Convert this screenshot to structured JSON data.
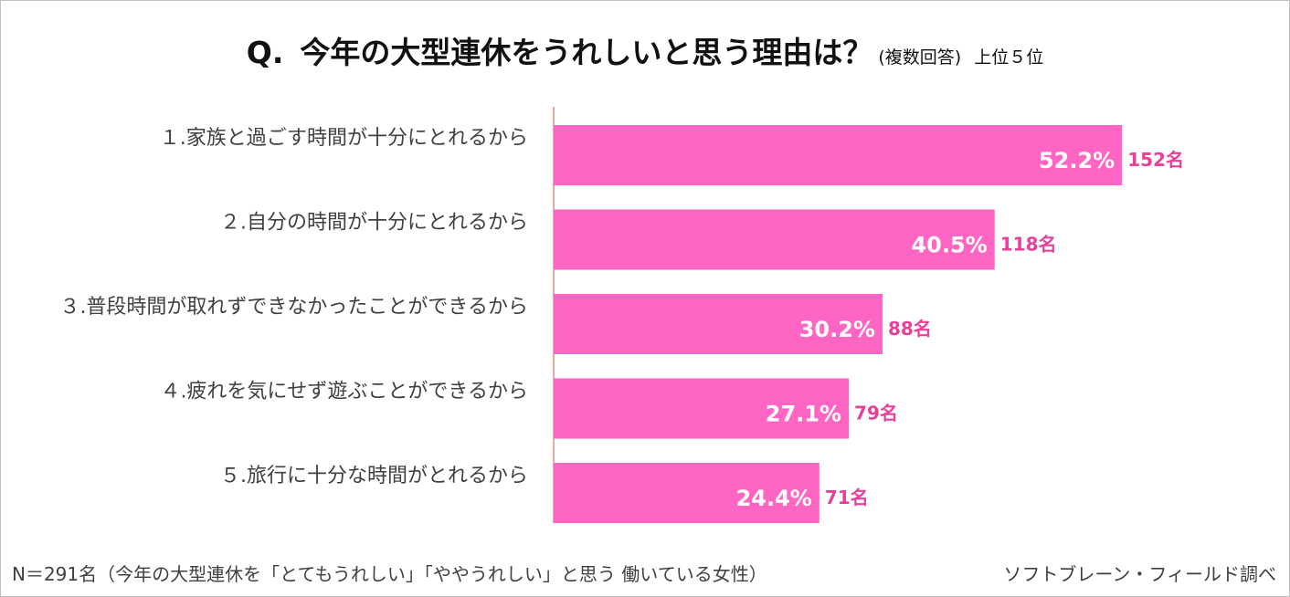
{
  "header": {
    "q": "Q.",
    "title": "今年の大型連休をうれしいと思う理由は？",
    "note": "(複数回答)",
    "rank": "上位５位"
  },
  "chart_data": {
    "type": "bar",
    "orientation": "horizontal",
    "categories": [
      "１.家族と過ごす時間が十分にとれるから",
      "２.自分の時間が十分にとれるから",
      "３.普段時間が取れずできなかったことができるから",
      "４.疲れを気にせず遊ぶことができるから",
      "５.旅行に十分な時間がとれるから"
    ],
    "values": [
      52.2,
      40.5,
      30.2,
      27.1,
      24.4
    ],
    "value_labels": [
      "52.2%",
      "40.5%",
      "30.2%",
      "27.1%",
      "24.4%"
    ],
    "counts": [
      "152名",
      "118名",
      "88名",
      "79名",
      "71名"
    ],
    "xlim": [
      0,
      100
    ],
    "bar_color": "#ff66c4",
    "count_color": "#e8409a",
    "grid": false,
    "legend": "none"
  },
  "footer": {
    "sample": "N＝291名（今年の大型連休を「とてもうれしい」「ややうれしい」と思う 働いている女性）",
    "source": "ソフトブレーン・フィールド調べ"
  }
}
